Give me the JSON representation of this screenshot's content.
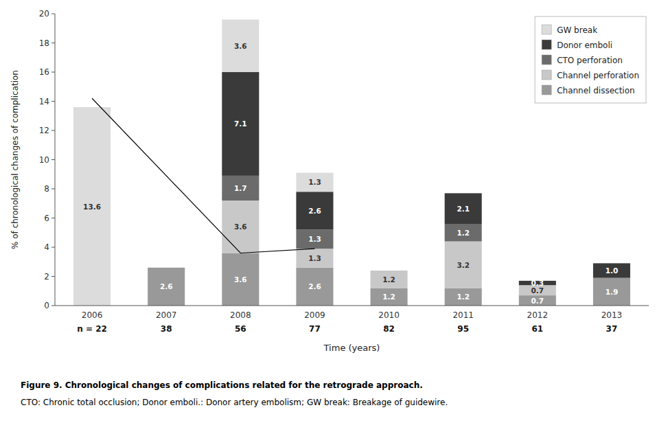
{
  "chart_data": {
    "type": "bar",
    "stacked": true,
    "title": "Figure 9. Chronological changes of complications related for the retrograde approach.",
    "subtitle": "CTO: Chronic total occlusion; Donor emboli.: Donor artery embolism; GW break: Breakage of guidewire.",
    "xlabel": "Time (years)",
    "ylabel": "% of chronological changes of complication",
    "categories": [
      "2006",
      "2007",
      "2008",
      "2009",
      "2010",
      "2011",
      "2012",
      "2013"
    ],
    "series": [
      {
        "name": "Channel dissection",
        "color": "#999999",
        "values": [
          0,
          2.6,
          3.6,
          2.6,
          1.2,
          1.2,
          0.7,
          1.9
        ]
      },
      {
        "name": "Channel perforation",
        "color": "#c8c8c8",
        "values": [
          0,
          0,
          3.6,
          1.3,
          1.2,
          3.2,
          0.7,
          0
        ]
      },
      {
        "name": "CTO perforation",
        "color": "#6b6b6b",
        "values": [
          0,
          0,
          1.7,
          1.3,
          0,
          1.2,
          0,
          0
        ]
      },
      {
        "name": "Donor emboli",
        "color": "#3a3a3a",
        "values": [
          0,
          0,
          7.1,
          2.6,
          0,
          2.1,
          0.3,
          1.0
        ],
        "value_labels": [
          null,
          null,
          "7.1",
          "2.6",
          null,
          "2.1",
          "0.3",
          "1.0"
        ]
      },
      {
        "name": "GW break",
        "color": "#dcdcdc",
        "values": [
          13.6,
          0,
          3.6,
          1.3,
          0,
          0,
          0,
          0
        ]
      },
      {
        "type": "line",
        "color": "#000000",
        "x": [
          "2006",
          "2008",
          "2009"
        ],
        "values": [
          14.2,
          3.6,
          3.9
        ]
      }
    ],
    "annotations": [
      "n = 22",
      "38",
      "56",
      "77",
      "82",
      "95",
      "61",
      "37"
    ],
    "ylim": [
      0,
      20
    ],
    "yticks": [
      0,
      2,
      4,
      6,
      8,
      10,
      12,
      14,
      16,
      18,
      20
    ],
    "grid": false,
    "legend": "upper right",
    "data_labels": true
  }
}
